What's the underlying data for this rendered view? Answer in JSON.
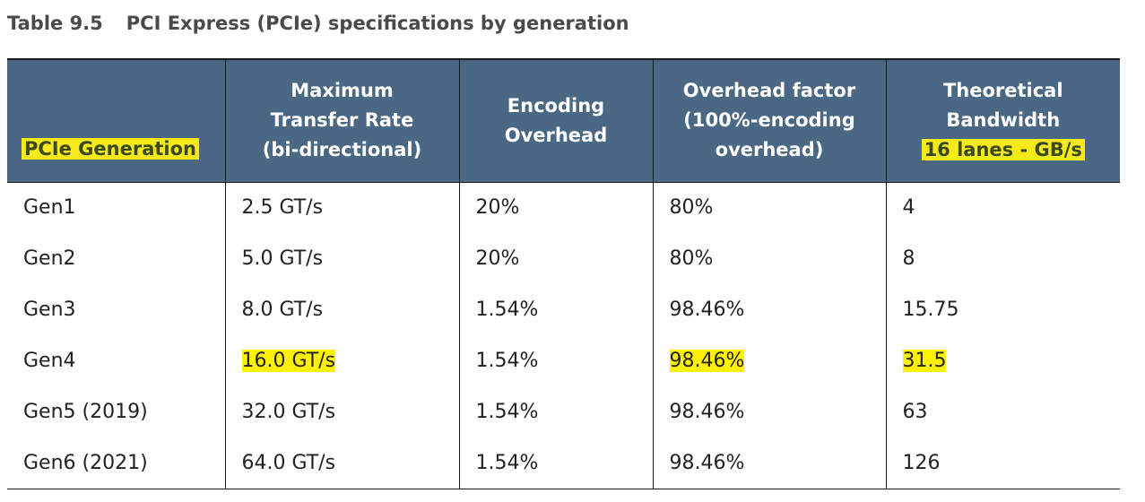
{
  "caption": {
    "number": "Table 9.5",
    "title": "PCI Express (PCIe) specifications by generation"
  },
  "headers": [
    {
      "lines": [
        "PCIe Generation"
      ],
      "highlight_lines": [
        0
      ]
    },
    {
      "lines": [
        "Maximum",
        "Transfer Rate",
        "(bi-directional)"
      ],
      "highlight_lines": []
    },
    {
      "lines": [
        "Encoding",
        "Overhead"
      ],
      "highlight_lines": []
    },
    {
      "lines": [
        "Overhead factor",
        "(100%-encoding",
        "overhead)"
      ],
      "highlight_lines": []
    },
    {
      "lines": [
        "Theoretical",
        "Bandwidth",
        "16 lanes - GB/s"
      ],
      "highlight_lines": [
        2
      ]
    }
  ],
  "rows": [
    [
      "Gen1",
      "2.5 GT/s",
      "20%",
      "80%",
      "4"
    ],
    [
      "Gen2",
      "5.0 GT/s",
      "20%",
      "80%",
      "8"
    ],
    [
      "Gen3",
      "8.0 GT/s",
      "1.54%",
      "98.46%",
      "15.75"
    ],
    [
      "Gen4",
      "16.0 GT/s",
      "1.54%",
      "98.46%",
      "31.5"
    ],
    [
      "Gen5 (2019)",
      "32.0 GT/s",
      "1.54%",
      "98.46%",
      "63"
    ],
    [
      "Gen6 (2021)",
      "64.0 GT/s",
      "1.54%",
      "98.46%",
      "126"
    ]
  ],
  "highlighted_cells": [
    {
      "row": 3,
      "col": 1
    },
    {
      "row": 3,
      "col": 3
    },
    {
      "row": 3,
      "col": 4
    }
  ],
  "colors": {
    "header_background": "#4a6784",
    "header_text": "#ffffff",
    "highlight": "#fff200",
    "caption_text": "#4a4a4a"
  }
}
